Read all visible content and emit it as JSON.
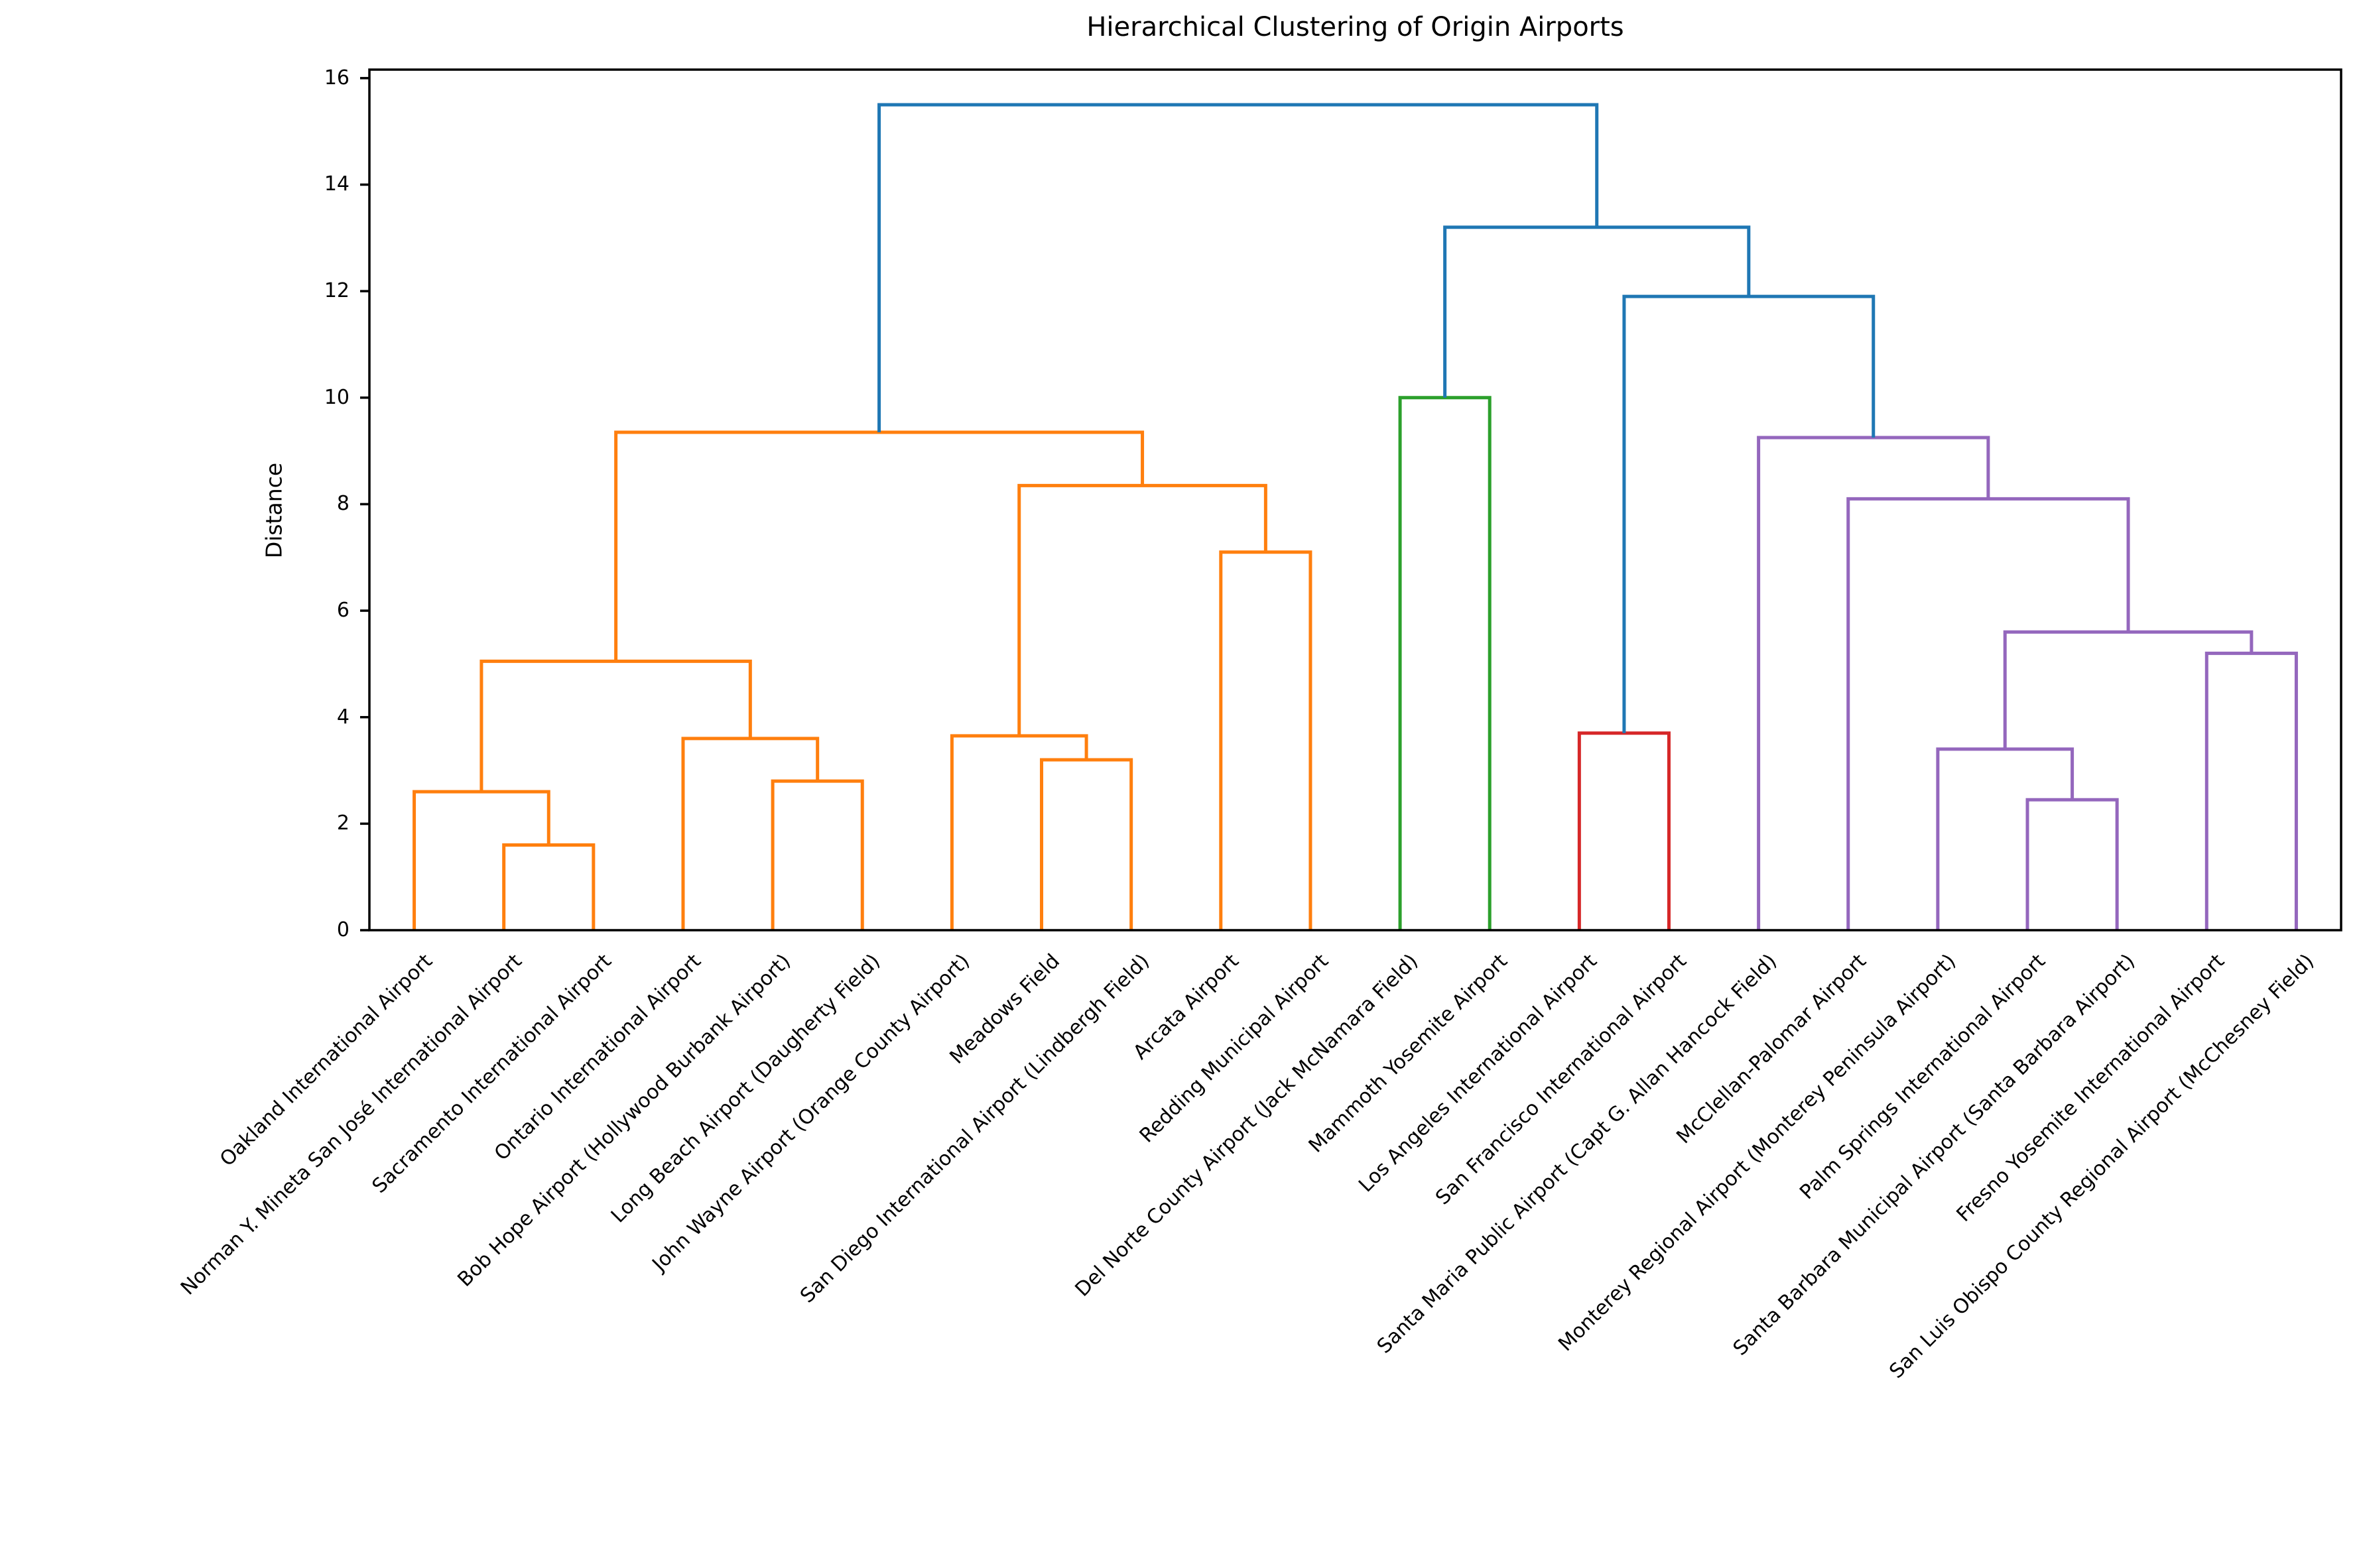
{
  "title": "Hierarchical Clustering of Origin Airports",
  "chart_data": {
    "type": "dendrogram",
    "title": "Hierarchical Clustering of Origin Airports",
    "xlabel": "",
    "ylabel": "Distance",
    "ylim": [
      0,
      16.16
    ],
    "yticks": [
      0,
      2,
      4,
      6,
      8,
      10,
      12,
      14,
      16
    ],
    "grid": false,
    "legend": "none",
    "colors": {
      "blue": "#1f77b4",
      "orange": "#ff7f0e",
      "green": "#2ca02c",
      "red": "#d62728",
      "purple": "#9467bd",
      "axis": "#000000"
    },
    "leaves": [
      "Oakland International Airport",
      "Norman Y. Mineta San José International Airport",
      "Sacramento International Airport",
      "Ontario International Airport",
      "Bob Hope Airport (Hollywood Burbank Airport)",
      "Long Beach Airport (Daugherty Field)",
      "John Wayne Airport (Orange County Airport)",
      "Meadows Field",
      "San Diego International Airport (Lindbergh Field)",
      "Arcata Airport",
      "Redding Municipal Airport",
      "Del Norte County Airport (Jack McNamara Field)",
      "Mammoth Yosemite Airport",
      "Los Angeles International Airport",
      "San Francisco International Airport",
      "Santa Maria Public Airport (Capt G. Allan Hancock Field)",
      "McClellan-Palomar Airport",
      "Monterey Regional Airport (Monterey Peninsula Airport)",
      "Palm Springs International Airport",
      "Santa Barbara Municipal Airport (Santa Barbara Airport)",
      "Fresno Yosemite International Airport",
      "San Luis Obispo County Regional Airport (McChesney Field)"
    ],
    "merges": [
      {
        "id": "A",
        "children": [
          "L2",
          "L3"
        ],
        "height": 1.6,
        "color": "#ff7f0e"
      },
      {
        "id": "B",
        "children": [
          "L1",
          "A"
        ],
        "height": 2.6,
        "color": "#ff7f0e"
      },
      {
        "id": "C",
        "children": [
          "L5",
          "L6"
        ],
        "height": 2.8,
        "color": "#ff7f0e"
      },
      {
        "id": "D",
        "children": [
          "L4",
          "C"
        ],
        "height": 3.6,
        "color": "#ff7f0e"
      },
      {
        "id": "E",
        "children": [
          "B",
          "D"
        ],
        "height": 5.05,
        "color": "#ff7f0e"
      },
      {
        "id": "F",
        "children": [
          "L8",
          "L9"
        ],
        "height": 3.2,
        "color": "#ff7f0e"
      },
      {
        "id": "G",
        "children": [
          "L7",
          "F"
        ],
        "height": 3.65,
        "color": "#ff7f0e"
      },
      {
        "id": "H",
        "children": [
          "L10",
          "L11"
        ],
        "height": 7.1,
        "color": "#ff7f0e"
      },
      {
        "id": "I",
        "children": [
          "G",
          "H"
        ],
        "height": 8.35,
        "color": "#ff7f0e"
      },
      {
        "id": "J",
        "children": [
          "E",
          "I"
        ],
        "height": 9.35,
        "color": "#ff7f0e"
      },
      {
        "id": "K",
        "children": [
          "L12",
          "L13"
        ],
        "height": 10.0,
        "color": "#2ca02c"
      },
      {
        "id": "LR",
        "children": [
          "L14",
          "L15"
        ],
        "height": 3.7,
        "color": "#d62728"
      },
      {
        "id": "M",
        "children": [
          "L19",
          "L20"
        ],
        "height": 2.45,
        "color": "#9467bd"
      },
      {
        "id": "N",
        "children": [
          "L18",
          "M"
        ],
        "height": 3.4,
        "color": "#9467bd"
      },
      {
        "id": "O",
        "children": [
          "L21",
          "L22"
        ],
        "height": 5.2,
        "color": "#9467bd"
      },
      {
        "id": "P",
        "children": [
          "N",
          "O"
        ],
        "height": 5.6,
        "color": "#9467bd"
      },
      {
        "id": "Q",
        "children": [
          "L17",
          "P"
        ],
        "height": 8.1,
        "color": "#9467bd"
      },
      {
        "id": "R",
        "children": [
          "L16",
          "Q"
        ],
        "height": 9.25,
        "color": "#9467bd"
      },
      {
        "id": "S",
        "children": [
          "LR",
          "R"
        ],
        "height": 11.9,
        "color": "#1f77b4"
      },
      {
        "id": "T",
        "children": [
          "K",
          "S"
        ],
        "height": 13.2,
        "color": "#1f77b4"
      },
      {
        "id": "ROOT",
        "children": [
          "J",
          "T"
        ],
        "height": 15.5,
        "color": "#1f77b4"
      }
    ]
  }
}
